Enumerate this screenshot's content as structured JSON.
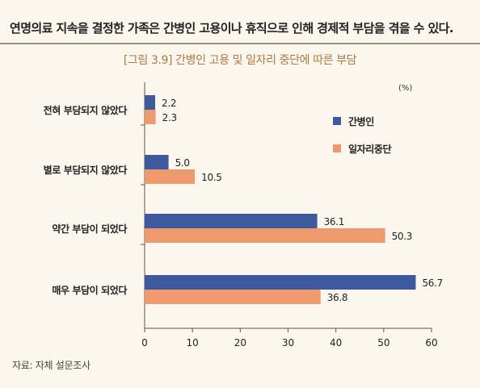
{
  "headline": "연명의료 지속을 결정한 가족은 간병인 고용이나 휴직으로 인해 경제적 부담을 겪을 수 있다.",
  "source": "자료: 자체 설문조사",
  "chart_data": {
    "type": "bar",
    "orientation": "horizontal",
    "title": "[그림 3.9] 간병인 고용 및 일자리 중단에 따른 부담",
    "unit": "(%)",
    "categories": [
      "전혀 부담되지 않았다",
      "별로 부담되지 않았다",
      "약간 부담이 되었다",
      "매우 부담이 되었다"
    ],
    "series": [
      {
        "name": "간병인",
        "color": "#3e5a9e",
        "values": [
          2.2,
          5.0,
          36.1,
          56.7
        ],
        "labels": [
          "2.2",
          "5.0",
          "36.1",
          "56.7"
        ]
      },
      {
        "name": "일자리중단",
        "color": "#ef9a6c",
        "values": [
          2.3,
          10.5,
          50.3,
          36.8
        ],
        "labels": [
          "2.3",
          "10.5",
          "50.3",
          "36.8"
        ]
      }
    ],
    "xlim": [
      0,
      60
    ],
    "xticks": [
      "0",
      "10",
      "20",
      "30",
      "40",
      "50",
      "60"
    ],
    "grid": false,
    "legend_position": "right"
  }
}
